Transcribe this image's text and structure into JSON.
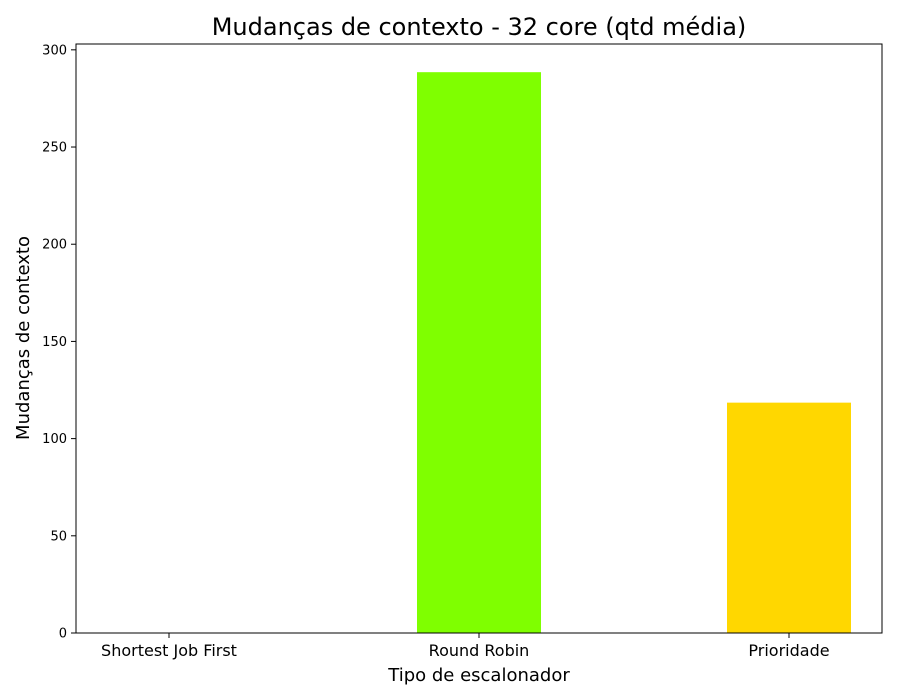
{
  "chart_data": {
    "type": "bar",
    "title": "Mudanças de contexto - 32 core (qtd média)",
    "xlabel": "Tipo de escalonador",
    "ylabel": "Mudanças de contexto",
    "categories": [
      "Shortest Job First",
      "Round Robin",
      "Prioridade"
    ],
    "values": [
      0,
      288.5,
      118.5
    ],
    "colors": [
      "#1f77b4",
      "#7fff00",
      "#ffd700"
    ],
    "ylim": [
      0,
      303
    ],
    "yticks": [
      0,
      50,
      100,
      150,
      200,
      250,
      300
    ],
    "grid": false,
    "legend": null
  }
}
